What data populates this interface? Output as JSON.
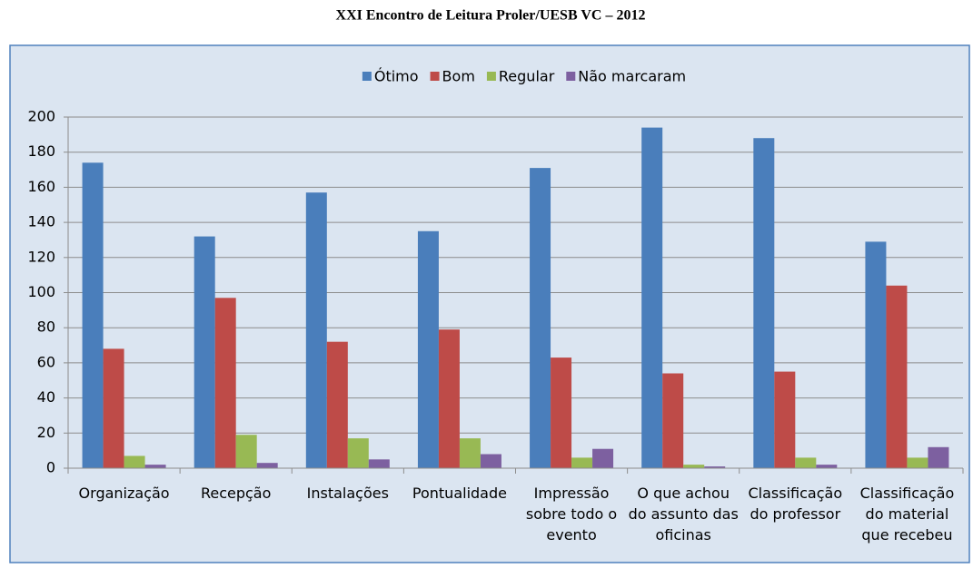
{
  "chart_data": {
    "type": "bar",
    "title": "XXI Encontro de Leitura Proler/UESB VC – 2012",
    "categories": [
      "Organização",
      "Recepção",
      "Instalações",
      "Pontualidade",
      "Impressão sobre todo o evento",
      "O que achou do assunto das oficinas",
      "Classificação do professor",
      "Classificação do material que recebeu"
    ],
    "series": [
      {
        "name": "Ótimo",
        "color": "#4a7ebb",
        "values": [
          174,
          132,
          157,
          135,
          171,
          194,
          188,
          129
        ]
      },
      {
        "name": "Bom",
        "color": "#be4b48",
        "values": [
          68,
          97,
          72,
          79,
          63,
          54,
          55,
          104
        ]
      },
      {
        "name": "Regular",
        "color": "#98b954",
        "values": [
          7,
          19,
          17,
          17,
          6,
          2,
          6,
          6
        ]
      },
      {
        "name": "Não marcaram",
        "color": "#7d60a0",
        "values": [
          2,
          3,
          5,
          8,
          11,
          1,
          2,
          12
        ]
      }
    ],
    "ylim": [
      0,
      200
    ],
    "yticks": [
      0,
      20,
      40,
      60,
      80,
      100,
      120,
      140,
      160,
      180,
      200
    ],
    "grid": true,
    "legend": "top"
  }
}
